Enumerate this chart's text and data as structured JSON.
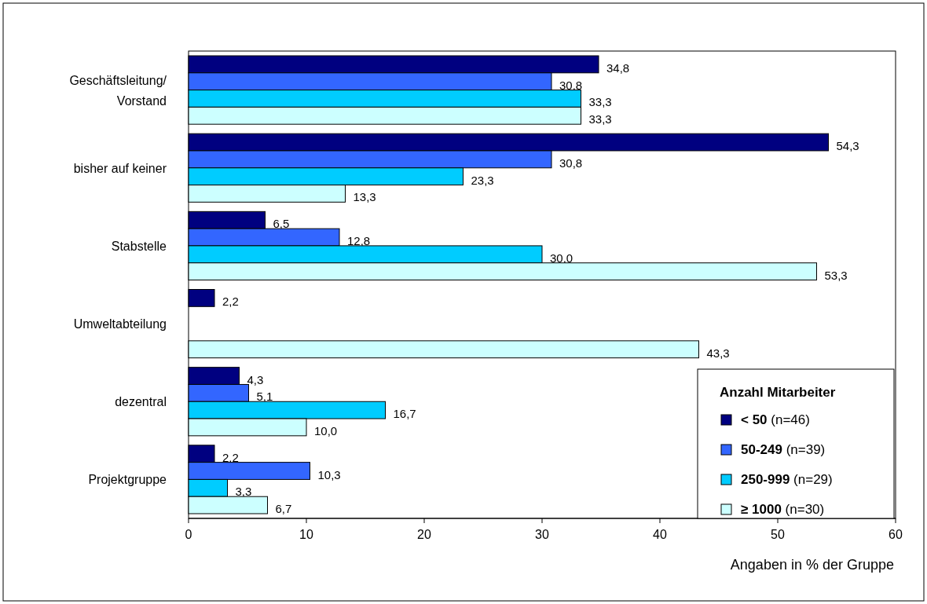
{
  "chart_data": {
    "type": "bar",
    "orientation": "horizontal",
    "xlabel": "Angaben in % der Gruppe",
    "legend_title": "Anzahl Mitarbeiter",
    "legend": "bottom right",
    "categories": [
      "Geschäftsleitung/\nVorstand",
      "bisher auf keiner",
      "Stabstelle",
      "Umweltabteilung",
      "dezentral",
      "Projektgruppe"
    ],
    "xlim": [
      0,
      60
    ],
    "xticks": [
      0,
      10,
      20,
      30,
      40,
      50,
      60
    ],
    "grid": false,
    "series": [
      {
        "name": "< 50 (n=46)",
        "color": "#000080",
        "values": [
          34.8,
          54.3,
          6.5,
          2.2,
          4.3,
          2.2
        ],
        "value_labels": [
          "34,8",
          "54,3",
          "6,5",
          "2,2",
          "4,3",
          "2,2"
        ]
      },
      {
        "name": "50-249 (n=39)",
        "color": "#3366ff",
        "values": [
          30.8,
          30.8,
          12.8,
          null,
          5.1,
          10.3
        ],
        "value_labels": [
          "30,8",
          "30,8",
          "12,8",
          null,
          "5,1",
          "10,3"
        ]
      },
      {
        "name": "250-999 (n=29)",
        "color": "#00ccff",
        "values": [
          33.3,
          23.3,
          30.0,
          null,
          16.7,
          3.3
        ],
        "value_labels": [
          "33,3",
          "23,3",
          "30,0",
          null,
          "16,7",
          "3,3"
        ]
      },
      {
        "name": "≥ 1000 (n=30)",
        "color": "#ccffff",
        "values": [
          33.3,
          13.3,
          53.3,
          43.3,
          10.0,
          6.7
        ],
        "value_labels": [
          "33,3",
          "13,3",
          "53,3",
          "43,3",
          "10,0",
          "6,7"
        ]
      }
    ]
  }
}
